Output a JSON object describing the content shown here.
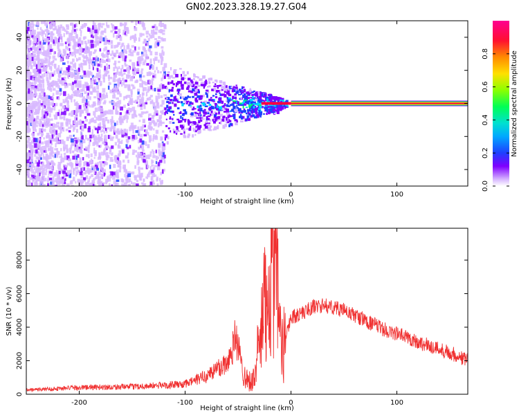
{
  "figure_title": "GN02.2023.328.19.27.G04",
  "chart_data": [
    {
      "type": "heatmap",
      "xlabel": "Height of straight line (km)",
      "ylabel": "Frequency (Hz)",
      "xlim": [
        -250,
        167
      ],
      "ylim": [
        -50,
        50
      ],
      "x_ticks": [
        -200,
        -100,
        0,
        100
      ],
      "x_tick_labels": [
        "-200",
        "-100",
        "0",
        "100"
      ],
      "y_ticks": [
        -40,
        -20,
        0,
        20,
        40
      ],
      "y_tick_labels": [
        "-40",
        "-20",
        "0",
        "20",
        "40"
      ],
      "colorbar": {
        "label": "Normalized spectral amplitude",
        "range": [
          0,
          1
        ],
        "ticks": [
          0,
          0.2,
          0.4,
          0.6,
          0.8
        ],
        "tick_labels": [
          "0.0",
          "0.2",
          "0.4",
          "0.6",
          "0.8"
        ],
        "colors": [
          "#ffffff",
          "#d8b8ff",
          "#7f00ff",
          "#1f3fff",
          "#00d8ff",
          "#00ff66",
          "#9cff00",
          "#ffd800",
          "#ff7a00",
          "#ff0040",
          "#ff00a0"
        ]
      },
      "line_band": {
        "x_start": 0,
        "x_end": 167,
        "frequency": 0
      },
      "grid": false
    },
    {
      "type": "line",
      "xlabel": "Height of straight line (km)",
      "ylabel": "SNR (10 * v/v)",
      "xlim": [
        -250,
        167
      ],
      "ylim": [
        0,
        9900
      ],
      "x_ticks": [
        -200,
        -100,
        0,
        100
      ],
      "x_tick_labels": [
        "-200",
        "-100",
        "0",
        "100"
      ],
      "y_ticks": [
        0,
        2000,
        4000,
        6000,
        8000
      ],
      "y_tick_labels": [
        "0",
        "2000",
        "4000",
        "6000",
        "8000"
      ],
      "color": "#f03030",
      "grid": false,
      "envelope": {
        "x": [
          -250,
          -200,
          -150,
          -100,
          -80,
          -60,
          -52,
          -45,
          -40,
          -35,
          -30,
          -25,
          -20,
          -17,
          -15,
          -12,
          -8,
          -5,
          0,
          10,
          20,
          30,
          40,
          50,
          60,
          70,
          80,
          90,
          100,
          110,
          120,
          130,
          140,
          150,
          160,
          167
        ],
        "y": [
          250,
          400,
          450,
          600,
          1100,
          1900,
          3500,
          1200,
          800,
          900,
          3000,
          5000,
          7200,
          9800,
          6800,
          5000,
          2500,
          3500,
          4600,
          4800,
          5200,
          5300,
          5200,
          5000,
          4700,
          4400,
          4100,
          3800,
          3600,
          3400,
          3100,
          2900,
          2700,
          2500,
          2200,
          2000
        ]
      }
    }
  ]
}
